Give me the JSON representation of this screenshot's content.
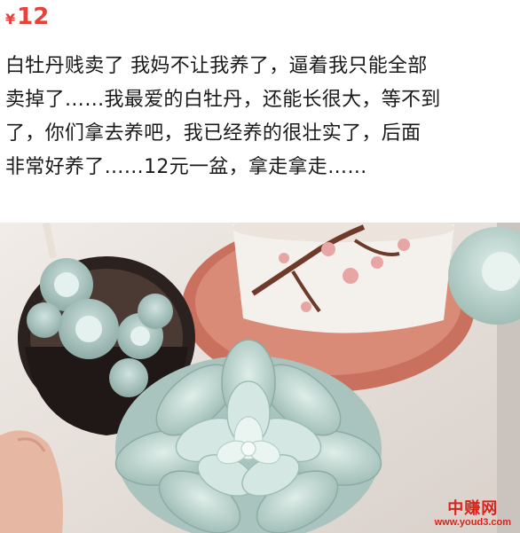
{
  "listing": {
    "price_symbol": "¥",
    "price": "12",
    "description": "白牡丹贱卖了 我妈不让我养了，逼着我只能全部\n卖掉了……我最爱的白牡丹，还能长很大，等不到\n了，你们拿去养吧，我已经养的很壮实了，后面\n非常好养了……12元一盆，拿走拿走……"
  },
  "photo": {
    "subject": "succulent-plants-photo",
    "watermark_name": "中赚网",
    "watermark_url": "www.youd3.com"
  },
  "colors": {
    "price": "#e8413a",
    "text": "#1a1a1a",
    "watermark": "#d8231b"
  }
}
